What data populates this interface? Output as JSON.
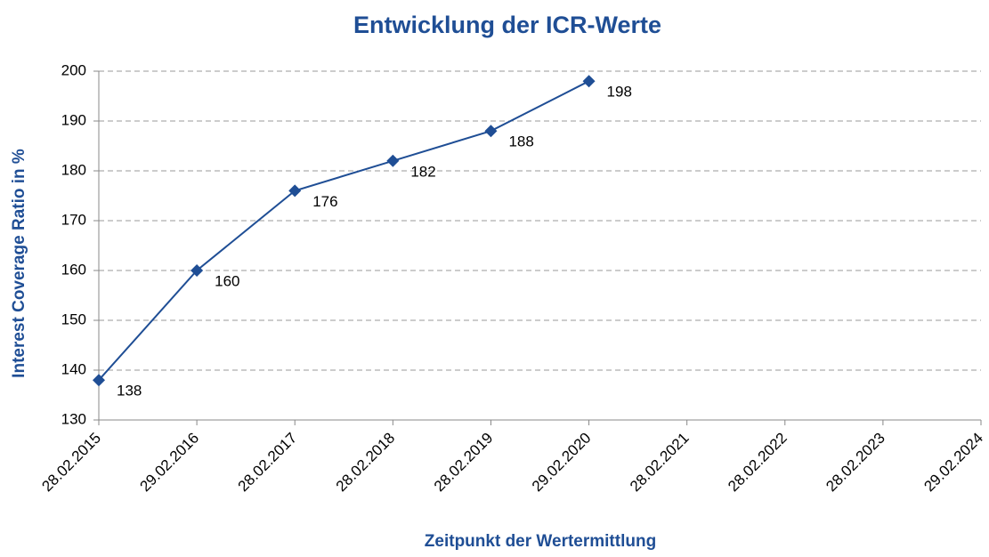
{
  "chart_data": {
    "type": "line",
    "title": "Entwicklung der ICR-Werte",
    "x_label": "Zeitpunkt der Wertermittlung",
    "y_label": "Interest Coverage Ratio in %",
    "categories": [
      "28.02.2015",
      "29.02.2016",
      "28.02.2017",
      "28.02.2018",
      "28.02.2019",
      "29.02.2020",
      "28.02.2021",
      "28.02.2022",
      "28.02.2023",
      "29.02.2024"
    ],
    "series": [
      {
        "name": "ICR",
        "color": "#1f4e95",
        "values": [
          138,
          160,
          176,
          182,
          188,
          198,
          null,
          null,
          null,
          null
        ]
      }
    ],
    "ylim": [
      130,
      200
    ],
    "yticks": [
      130,
      140,
      150,
      160,
      170,
      180,
      190,
      200
    ],
    "grid": true
  }
}
